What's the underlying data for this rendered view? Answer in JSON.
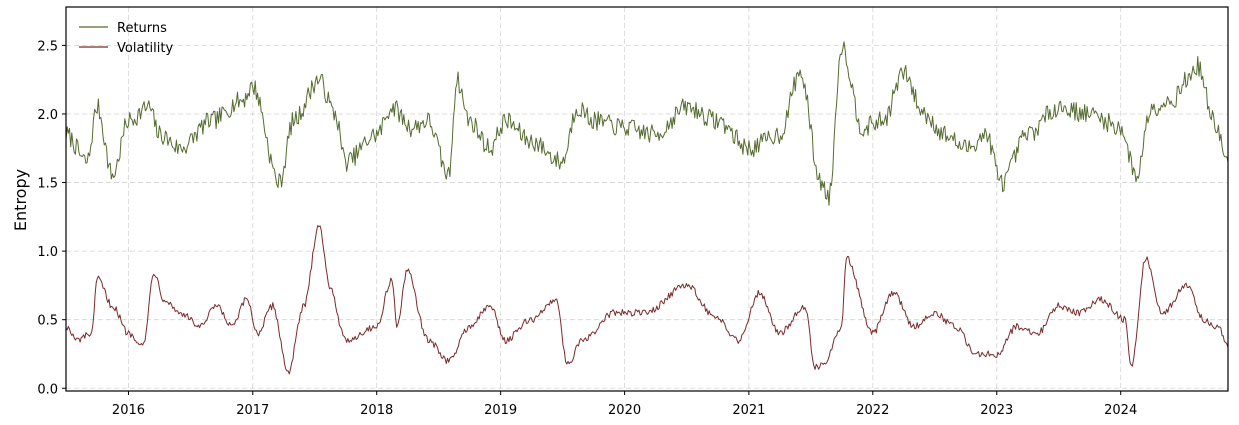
{
  "chart_data": {
    "type": "line",
    "title": "",
    "xlabel": "",
    "ylabel": "Entropy",
    "grid": true,
    "legend_position": "top-left",
    "x_range": [
      "2015-07-01",
      "2024-11-12"
    ],
    "ylim": [
      -0.02,
      2.78
    ],
    "x_ticks": [
      "2016",
      "2017",
      "2018",
      "2019",
      "2020",
      "2021",
      "2022",
      "2023",
      "2024"
    ],
    "y_ticks": [
      "0.0",
      "0.5",
      "1.0",
      "1.5",
      "2.0",
      "2.5"
    ],
    "series": [
      {
        "name": "Returns",
        "color": "#556b2f",
        "x": [
          "2015-07-01",
          "2015-09-01",
          "2015-10-01",
          "2015-11-15",
          "2016-01-01",
          "2016-03-01",
          "2016-04-01",
          "2016-06-01",
          "2016-09-01",
          "2016-12-01",
          "2017-01-01",
          "2017-03-20",
          "2017-05-01",
          "2017-07-15",
          "2017-09-01",
          "2017-10-01",
          "2018-01-01",
          "2018-02-15",
          "2018-04-15",
          "2018-06-01",
          "2018-08-01",
          "2018-08-25",
          "2018-10-01",
          "2018-12-01",
          "2019-01-15",
          "2019-04-01",
          "2019-07-01",
          "2019-08-15",
          "2019-10-01",
          "2020-01-01",
          "2020-04-01",
          "2020-07-01",
          "2020-10-01",
          "2021-01-01",
          "2021-04-01",
          "2021-06-01",
          "2021-08-01",
          "2021-08-25",
          "2021-10-01",
          "2021-12-01",
          "2022-02-01",
          "2022-04-01",
          "2022-06-01",
          "2022-08-01",
          "2022-10-01",
          "2022-12-01",
          "2023-01-15",
          "2023-04-01",
          "2023-07-01",
          "2023-10-01",
          "2024-01-01",
          "2024-02-15",
          "2024-04-01",
          "2024-06-01",
          "2024-07-15",
          "2024-08-15",
          "2024-10-01",
          "2024-11-12"
        ],
        "values": [
          1.85,
          1.65,
          2.05,
          1.55,
          1.95,
          2.05,
          1.85,
          1.75,
          1.95,
          2.1,
          2.2,
          1.5,
          1.95,
          2.25,
          2.0,
          1.65,
          1.85,
          2.05,
          1.9,
          1.95,
          1.55,
          2.25,
          1.95,
          1.75,
          1.95,
          1.8,
          1.65,
          2.05,
          1.95,
          1.9,
          1.85,
          2.05,
          1.95,
          1.75,
          1.85,
          2.3,
          1.5,
          1.4,
          2.5,
          1.9,
          1.95,
          2.3,
          2.0,
          1.85,
          1.75,
          1.85,
          1.5,
          1.85,
          2.05,
          2.0,
          1.9,
          1.55,
          2.05,
          2.1,
          2.25,
          2.35,
          1.95,
          1.65
        ]
      },
      {
        "name": "Volatility",
        "color": "#7b2a2a",
        "x": [
          "2015-07-01",
          "2015-08-01",
          "2015-09-15",
          "2015-10-01",
          "2015-11-15",
          "2016-01-01",
          "2016-02-15",
          "2016-03-15",
          "2016-04-15",
          "2016-06-01",
          "2016-08-01",
          "2016-09-15",
          "2016-11-01",
          "2016-12-15",
          "2017-01-15",
          "2017-03-01",
          "2017-04-15",
          "2017-06-01",
          "2017-07-15",
          "2017-08-15",
          "2017-10-01",
          "2018-01-01",
          "2018-02-15",
          "2018-03-01",
          "2018-04-01",
          "2018-06-01",
          "2018-08-01",
          "2018-10-01",
          "2018-12-01",
          "2019-01-15",
          "2019-04-01",
          "2019-06-15",
          "2019-07-15",
          "2019-09-01",
          "2019-12-01",
          "2020-03-01",
          "2020-07-01",
          "2020-10-01",
          "2020-12-01",
          "2021-02-01",
          "2021-04-01",
          "2021-06-15",
          "2021-07-15",
          "2021-08-15",
          "2021-10-01",
          "2021-10-15",
          "2022-01-01",
          "2022-03-01",
          "2022-05-01",
          "2022-07-01",
          "2022-09-01",
          "2022-11-01",
          "2023-01-01",
          "2023-03-01",
          "2023-05-01",
          "2023-07-01",
          "2023-09-01",
          "2023-11-01",
          "2024-01-15",
          "2024-02-01",
          "2024-03-15",
          "2024-05-01",
          "2024-07-15",
          "2024-09-01",
          "2024-10-15",
          "2024-11-12"
        ],
        "values": [
          0.45,
          0.35,
          0.4,
          0.8,
          0.6,
          0.4,
          0.32,
          0.85,
          0.65,
          0.55,
          0.45,
          0.6,
          0.45,
          0.65,
          0.4,
          0.6,
          0.12,
          0.6,
          1.2,
          0.75,
          0.35,
          0.45,
          0.8,
          0.45,
          0.85,
          0.35,
          0.2,
          0.45,
          0.6,
          0.35,
          0.5,
          0.65,
          0.18,
          0.35,
          0.55,
          0.55,
          0.75,
          0.5,
          0.35,
          0.7,
          0.4,
          0.6,
          0.15,
          0.2,
          0.45,
          0.95,
          0.4,
          0.7,
          0.45,
          0.55,
          0.45,
          0.25,
          0.25,
          0.45,
          0.4,
          0.6,
          0.55,
          0.65,
          0.5,
          0.15,
          0.95,
          0.55,
          0.75,
          0.5,
          0.45,
          0.3
        ]
      }
    ]
  }
}
